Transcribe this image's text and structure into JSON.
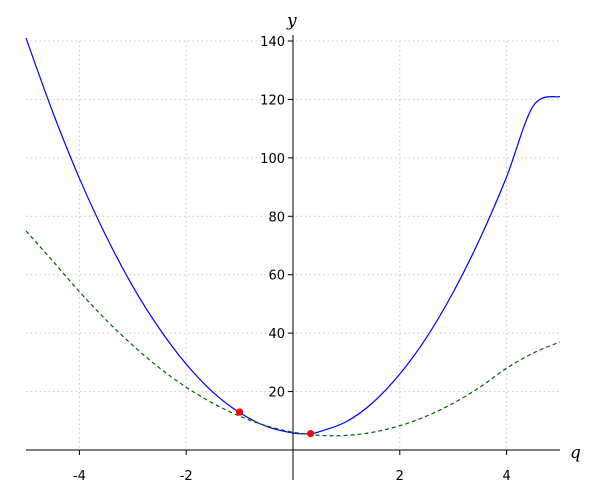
{
  "chart_data": {
    "type": "line",
    "title": "",
    "xlabel": "q",
    "ylabel": "y",
    "xlim": [
      -5,
      5
    ],
    "ylim": [
      0,
      140
    ],
    "grid": true,
    "x_ticks": [
      -4,
      -2,
      2,
      4
    ],
    "y_ticks": [
      20,
      40,
      60,
      80,
      100,
      120,
      140
    ],
    "series": [
      {
        "style": "solid",
        "color": "#0000ff",
        "x": [
          -5,
          -4.5,
          -4,
          -3.5,
          -3,
          -2.5,
          -2,
          -1.5,
          -1,
          -0.5,
          0,
          0.3,
          0.5,
          1,
          1.5,
          2,
          2.5,
          3,
          3.5,
          4,
          4.5,
          5
        ],
        "y": [
          141,
          115.7,
          93,
          73.2,
          56,
          41.5,
          29.4,
          19.8,
          12.8,
          8.1,
          5.8,
          5.6,
          6.3,
          9.7,
          16.3,
          26,
          38.5,
          54,
          72.3,
          93.5,
          117.8,
          121
        ]
      },
      {
        "style": "dashed",
        "color": "#006400",
        "x": [
          -5,
          -4.5,
          -4,
          -3.5,
          -3,
          -2.5,
          -2,
          -1.5,
          -1,
          -0.5,
          0,
          0.5,
          1,
          1.5,
          2,
          2.5,
          3,
          3.5,
          4,
          4.5,
          5
        ],
        "y": [
          75,
          64.7,
          54.2,
          44.5,
          35.8,
          28.1,
          21.5,
          16,
          11.6,
          8.3,
          6.1,
          5,
          5,
          6.1,
          8.3,
          11.6,
          16,
          21.5,
          28,
          33.2,
          37
        ]
      }
    ],
    "points": [
      {
        "x": -1,
        "y": 13,
        "color": "#ff0000"
      },
      {
        "x": 0.33,
        "y": 5.6,
        "color": "#ff0000"
      }
    ]
  }
}
